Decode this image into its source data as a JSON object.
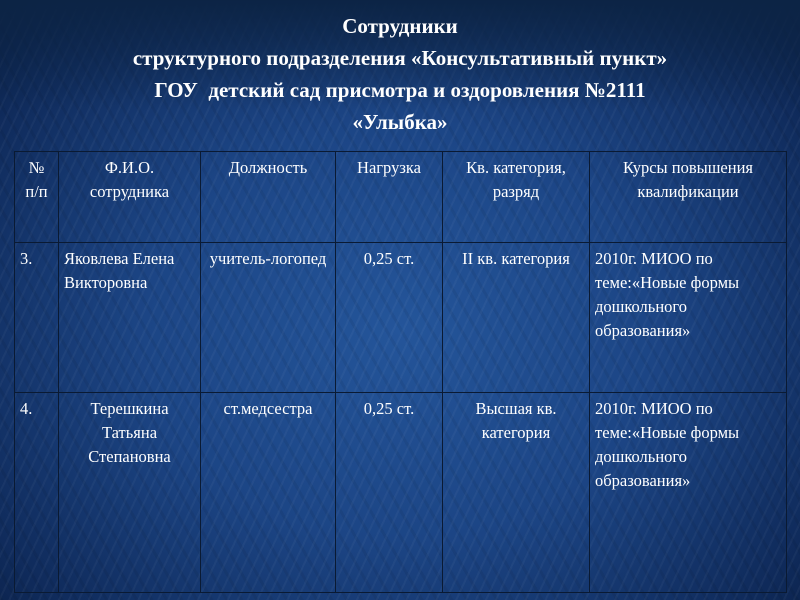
{
  "title": {
    "line1": "Сотрудники",
    "line2": "структурного подразделения «Консультативный пункт»",
    "line3": "ГОУ  детский сад присмотра и оздоровления №2111",
    "line4": "«Улыбка»"
  },
  "table": {
    "headers": [
      "№ п/п",
      "Ф.И.О. сотрудника",
      "Должность",
      "Нагрузка",
      "Кв. категория, разряд",
      "Курсы повышения квалификации"
    ],
    "rows": [
      [
        "3.",
        "Яковлева Елена Викторовна",
        "учитель-логопед",
        "0,25 ст.",
        "II кв. категория",
        "2010г. МИОО по теме:«Новые формы дошкольного образования»"
      ],
      [
        "4.",
        "Терешкина Татьяна Степановна",
        "ст.медсестра",
        "0,25 ст.",
        "Высшая кв. категория",
        "2010г. МИОО по теме:«Новые формы дошкольного образования»"
      ]
    ]
  }
}
